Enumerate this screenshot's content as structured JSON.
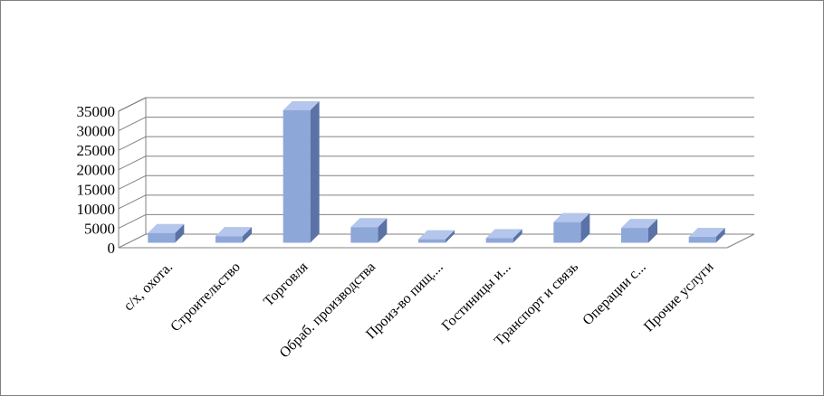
{
  "chart_data": {
    "type": "bar",
    "title": "",
    "xlabel": "",
    "ylabel": "",
    "categories": [
      "с/х, охота.",
      "Строительство",
      "Торговля",
      "Обраб. производства",
      "Произ-во пищ....",
      "Гостиницы и...",
      "Транспорт и связь",
      "Операции с...",
      "Прочие услуги"
    ],
    "values": [
      2500,
      1700,
      34000,
      4000,
      900,
      1200,
      5300,
      3800,
      1500
    ],
    "ylim": [
      0,
      35000
    ],
    "yticks": [
      0,
      5000,
      10000,
      15000,
      20000,
      25000,
      30000,
      35000
    ],
    "grid": true,
    "legend": "none",
    "style": "3d-column",
    "colors": {
      "front": "#8ea7d9",
      "side": "#5a72a6",
      "top": "#b4c6ec",
      "grid": "#808080"
    }
  }
}
